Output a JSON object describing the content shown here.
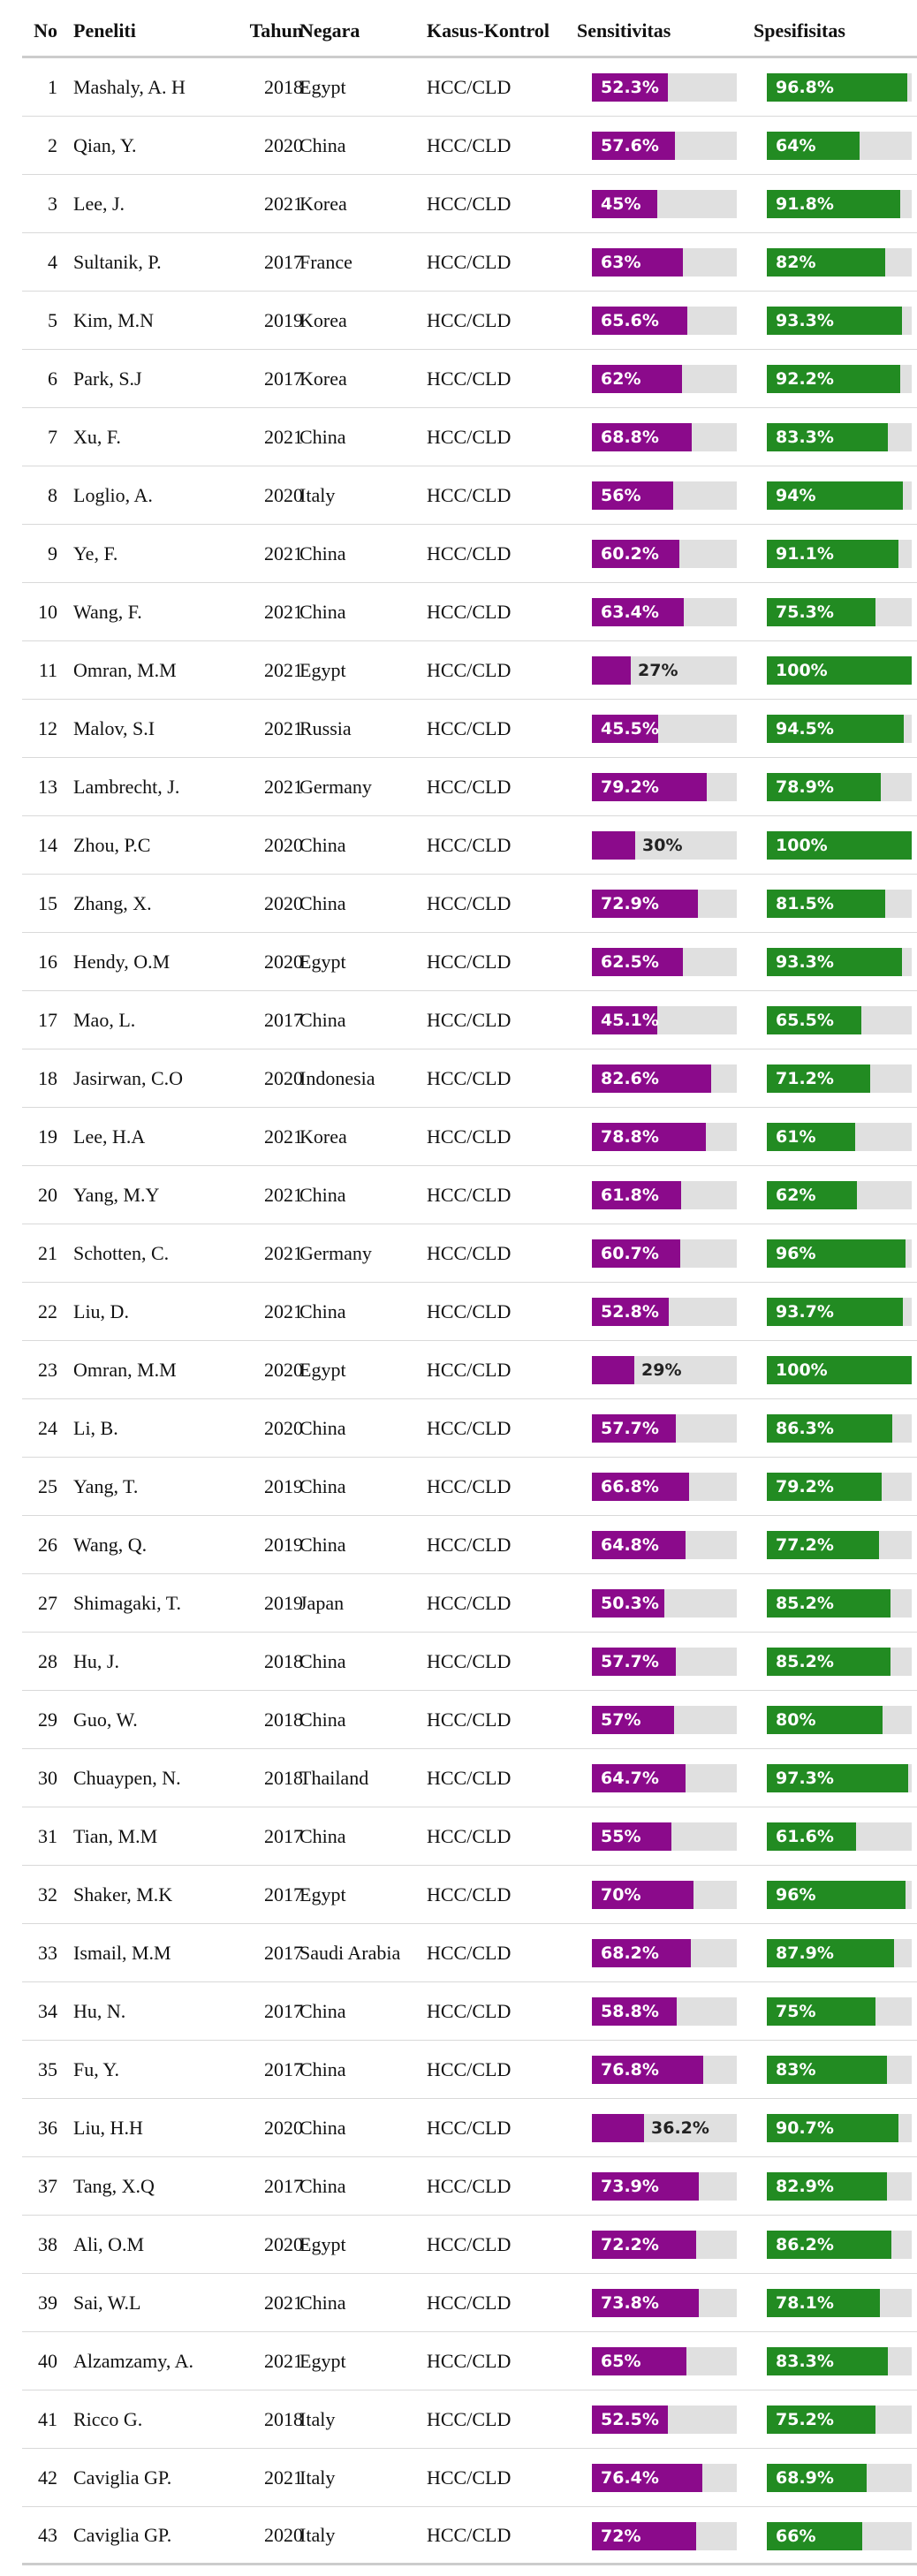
{
  "header": {
    "no": "No",
    "peneliti": "Peneliti",
    "tahun": "Tahun",
    "negara": "Negara",
    "kasus_kontrol": "Kasus-Kontrol",
    "sensitivitas": "Sensitivitas",
    "spesifisitas": "Spesifisitas"
  },
  "colors": {
    "sensitivitas_bar": "#8b0a8b",
    "spesifisitas_bar": "#228b22",
    "bar_background": "#e0e0e0"
  },
  "rows": [
    {
      "no": "1",
      "peneliti": "Mashaly, A. H",
      "tahun": "2018",
      "negara": "Egypt",
      "kasus": "HCC/CLD",
      "sens": 52.3,
      "sens_label": "52.3%",
      "spes": 96.8,
      "spes_label": "96.8%"
    },
    {
      "no": "2",
      "peneliti": "Qian, Y.",
      "tahun": "2020",
      "negara": "China",
      "kasus": "HCC/CLD",
      "sens": 57.6,
      "sens_label": "57.6%",
      "spes": 64,
      "spes_label": "64%"
    },
    {
      "no": "3",
      "peneliti": "Lee, J.",
      "tahun": "2021",
      "negara": "Korea",
      "kasus": "HCC/CLD",
      "sens": 45,
      "sens_label": "45%",
      "spes": 91.8,
      "spes_label": "91.8%"
    },
    {
      "no": "4",
      "peneliti": "Sultanik, P.",
      "tahun": "2017",
      "negara": "France",
      "kasus": "HCC/CLD",
      "sens": 63,
      "sens_label": "63%",
      "spes": 82,
      "spes_label": "82%"
    },
    {
      "no": "5",
      "peneliti": "Kim, M.N",
      "tahun": "2019",
      "negara": "Korea",
      "kasus": "HCC/CLD",
      "sens": 65.6,
      "sens_label": "65.6%",
      "spes": 93.3,
      "spes_label": "93.3%"
    },
    {
      "no": "6",
      "peneliti": "Park, S.J",
      "tahun": "2017",
      "negara": "Korea",
      "kasus": "HCC/CLD",
      "sens": 62,
      "sens_label": "62%",
      "spes": 92.2,
      "spes_label": "92.2%"
    },
    {
      "no": "7",
      "peneliti": "Xu, F.",
      "tahun": "2021",
      "negara": "China",
      "kasus": "HCC/CLD",
      "sens": 68.8,
      "sens_label": "68.8%",
      "spes": 83.3,
      "spes_label": "83.3%"
    },
    {
      "no": "8",
      "peneliti": "Loglio, A.",
      "tahun": "2020",
      "negara": "Italy",
      "kasus": "HCC/CLD",
      "sens": 56,
      "sens_label": "56%",
      "spes": 94,
      "spes_label": "94%"
    },
    {
      "no": "9",
      "peneliti": "Ye, F.",
      "tahun": "2021",
      "negara": "China",
      "kasus": "HCC/CLD",
      "sens": 60.2,
      "sens_label": "60.2%",
      "spes": 91.1,
      "spes_label": "91.1%"
    },
    {
      "no": "10",
      "peneliti": "Wang, F.",
      "tahun": "2021",
      "negara": "China",
      "kasus": "HCC/CLD",
      "sens": 63.4,
      "sens_label": "63.4%",
      "spes": 75.3,
      "spes_label": "75.3%"
    },
    {
      "no": "11",
      "peneliti": "Omran, M.M",
      "tahun": "2021",
      "negara": "Egypt",
      "kasus": "HCC/CLD",
      "sens": 27,
      "sens_label": "27%",
      "spes": 100,
      "spes_label": "100%"
    },
    {
      "no": "12",
      "peneliti": "Malov, S.I",
      "tahun": "2021",
      "negara": "Russia",
      "kasus": "HCC/CLD",
      "sens": 45.5,
      "sens_label": "45.5%",
      "spes": 94.5,
      "spes_label": "94.5%"
    },
    {
      "no": "13",
      "peneliti": "Lambrecht, J.",
      "tahun": "2021",
      "negara": "Germany",
      "kasus": "HCC/CLD",
      "sens": 79.2,
      "sens_label": "79.2%",
      "spes": 78.9,
      "spes_label": "78.9%"
    },
    {
      "no": "14",
      "peneliti": "Zhou, P.C",
      "tahun": "2020",
      "negara": "China",
      "kasus": "HCC/CLD",
      "sens": 30,
      "sens_label": "30%",
      "spes": 100,
      "spes_label": "100%"
    },
    {
      "no": "15",
      "peneliti": "Zhang, X.",
      "tahun": "2020",
      "negara": "China",
      "kasus": "HCC/CLD",
      "sens": 72.9,
      "sens_label": "72.9%",
      "spes": 81.5,
      "spes_label": "81.5%"
    },
    {
      "no": "16",
      "peneliti": "Hendy, O.M",
      "tahun": "2020",
      "negara": "Egypt",
      "kasus": "HCC/CLD",
      "sens": 62.5,
      "sens_label": "62.5%",
      "spes": 93.3,
      "spes_label": "93.3%"
    },
    {
      "no": "17",
      "peneliti": "Mao, L.",
      "tahun": "2017",
      "negara": "China",
      "kasus": "HCC/CLD",
      "sens": 45.1,
      "sens_label": "45.1%",
      "spes": 65.5,
      "spes_label": "65.5%"
    },
    {
      "no": "18",
      "peneliti": "Jasirwan, C.O",
      "tahun": "2020",
      "negara": "Indonesia",
      "kasus": "HCC/CLD",
      "sens": 82.6,
      "sens_label": "82.6%",
      "spes": 71.2,
      "spes_label": "71.2%"
    },
    {
      "no": "19",
      "peneliti": "Lee, H.A",
      "tahun": "2021",
      "negara": "Korea",
      "kasus": "HCC/CLD",
      "sens": 78.8,
      "sens_label": "78.8%",
      "spes": 61,
      "spes_label": "61%"
    },
    {
      "no": "20",
      "peneliti": "Yang, M.Y",
      "tahun": "2021",
      "negara": "China",
      "kasus": "HCC/CLD",
      "sens": 61.8,
      "sens_label": "61.8%",
      "spes": 62,
      "spes_label": "62%"
    },
    {
      "no": "21",
      "peneliti": "Schotten, C.",
      "tahun": "2021",
      "negara": "Germany",
      "kasus": "HCC/CLD",
      "sens": 60.7,
      "sens_label": "60.7%",
      "spes": 96,
      "spes_label": "96%"
    },
    {
      "no": "22",
      "peneliti": "Liu, D.",
      "tahun": "2021",
      "negara": "China",
      "kasus": "HCC/CLD",
      "sens": 52.8,
      "sens_label": "52.8%",
      "spes": 93.7,
      "spes_label": "93.7%"
    },
    {
      "no": "23",
      "peneliti": "Omran, M.M",
      "tahun": "2020",
      "negara": "Egypt",
      "kasus": "HCC/CLD",
      "sens": 29,
      "sens_label": "29%",
      "spes": 100,
      "spes_label": "100%"
    },
    {
      "no": "24",
      "peneliti": "Li, B.",
      "tahun": "2020",
      "negara": "China",
      "kasus": "HCC/CLD",
      "sens": 57.7,
      "sens_label": "57.7%",
      "spes": 86.3,
      "spes_label": "86.3%"
    },
    {
      "no": "25",
      "peneliti": "Yang, T.",
      "tahun": "2019",
      "negara": "China",
      "kasus": "HCC/CLD",
      "sens": 66.8,
      "sens_label": "66.8%",
      "spes": 79.2,
      "spes_label": "79.2%"
    },
    {
      "no": "26",
      "peneliti": "Wang, Q.",
      "tahun": "2019",
      "negara": "China",
      "kasus": "HCC/CLD",
      "sens": 64.8,
      "sens_label": "64.8%",
      "spes": 77.2,
      "spes_label": "77.2%"
    },
    {
      "no": "27",
      "peneliti": "Shimagaki, T.",
      "tahun": "2019",
      "negara": "Japan",
      "kasus": "HCC/CLD",
      "sens": 50.3,
      "sens_label": "50.3%",
      "spes": 85.2,
      "spes_label": "85.2%"
    },
    {
      "no": "28",
      "peneliti": "Hu, J.",
      "tahun": "2018",
      "negara": "China",
      "kasus": "HCC/CLD",
      "sens": 57.7,
      "sens_label": "57.7%",
      "spes": 85.2,
      "spes_label": "85.2%"
    },
    {
      "no": "29",
      "peneliti": "Guo, W.",
      "tahun": "2018",
      "negara": "China",
      "kasus": "HCC/CLD",
      "sens": 57,
      "sens_label": "57%",
      "spes": 80,
      "spes_label": "80%"
    },
    {
      "no": "30",
      "peneliti": "Chuaypen, N.",
      "tahun": "2018",
      "negara": "Thailand",
      "kasus": "HCC/CLD",
      "sens": 64.7,
      "sens_label": "64.7%",
      "spes": 97.3,
      "spes_label": "97.3%"
    },
    {
      "no": "31",
      "peneliti": "Tian, M.M",
      "tahun": "2017",
      "negara": "China",
      "kasus": "HCC/CLD",
      "sens": 55,
      "sens_label": "55%",
      "spes": 61.6,
      "spes_label": "61.6%"
    },
    {
      "no": "32",
      "peneliti": "Shaker, M.K",
      "tahun": "2017",
      "negara": "Egypt",
      "kasus": "HCC/CLD",
      "sens": 70,
      "sens_label": "70%",
      "spes": 96,
      "spes_label": "96%"
    },
    {
      "no": "33",
      "peneliti": "Ismail, M.M",
      "tahun": "2017",
      "negara": "Saudi Arabia",
      "kasus": "HCC/CLD",
      "sens": 68.2,
      "sens_label": "68.2%",
      "spes": 87.9,
      "spes_label": "87.9%"
    },
    {
      "no": "34",
      "peneliti": "Hu, N.",
      "tahun": "2017",
      "negara": "China",
      "kasus": "HCC/CLD",
      "sens": 58.8,
      "sens_label": "58.8%",
      "spes": 75,
      "spes_label": "75%"
    },
    {
      "no": "35",
      "peneliti": "Fu, Y.",
      "tahun": "2017",
      "negara": "China",
      "kasus": "HCC/CLD",
      "sens": 76.8,
      "sens_label": "76.8%",
      "spes": 83,
      "spes_label": "83%"
    },
    {
      "no": "36",
      "peneliti": "Liu, H.H",
      "tahun": "2020",
      "negara": "China",
      "kasus": "HCC/CLD",
      "sens": 36.2,
      "sens_label": "36.2%",
      "spes": 90.7,
      "spes_label": "90.7%"
    },
    {
      "no": "37",
      "peneliti": "Tang, X.Q",
      "tahun": "2017",
      "negara": "China",
      "kasus": "HCC/CLD",
      "sens": 73.9,
      "sens_label": "73.9%",
      "spes": 82.9,
      "spes_label": "82.9%"
    },
    {
      "no": "38",
      "peneliti": "Ali, O.M",
      "tahun": "2020",
      "negara": "Egypt",
      "kasus": "HCC/CLD",
      "sens": 72.2,
      "sens_label": "72.2%",
      "spes": 86.2,
      "spes_label": "86.2%"
    },
    {
      "no": "39",
      "peneliti": "Sai, W.L",
      "tahun": "2021",
      "negara": "China",
      "kasus": "HCC/CLD",
      "sens": 73.8,
      "sens_label": "73.8%",
      "spes": 78.1,
      "spes_label": "78.1%"
    },
    {
      "no": "40",
      "peneliti": "Alzamzamy, A.",
      "tahun": "2021",
      "negara": "Egypt",
      "kasus": "HCC/CLD",
      "sens": 65,
      "sens_label": "65%",
      "spes": 83.3,
      "spes_label": "83.3%"
    },
    {
      "no": "41",
      "peneliti": "Ricco G.",
      "tahun": "2018",
      "negara": "Italy",
      "kasus": "HCC/CLD",
      "sens": 52.5,
      "sens_label": "52.5%",
      "spes": 75.2,
      "spes_label": "75.2%"
    },
    {
      "no": "42",
      "peneliti": "Caviglia GP.",
      "tahun": "2021",
      "negara": "Italy",
      "kasus": "HCC/CLD",
      "sens": 76.4,
      "sens_label": "76.4%",
      "spes": 68.9,
      "spes_label": "68.9%"
    },
    {
      "no": "43",
      "peneliti": "Caviglia GP.",
      "tahun": "2020",
      "negara": "Italy",
      "kasus": "HCC/CLD",
      "sens": 72,
      "sens_label": "72%",
      "spes": 66,
      "spes_label": "66%"
    }
  ]
}
